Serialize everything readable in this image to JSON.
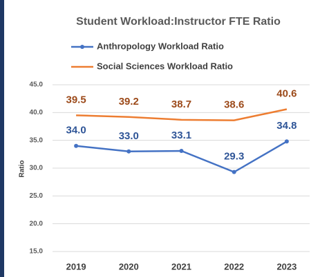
{
  "chart_data": {
    "type": "line",
    "title": "Student Workload:Instructor FTE Ratio",
    "y_label": "Ratio",
    "categories": [
      "2019",
      "2020",
      "2021",
      "2022",
      "2023"
    ],
    "series": [
      {
        "name": "Anthropology Workload Ratio",
        "color": "#4472c4",
        "label_color": "#2f5597",
        "values": [
          34.0,
          33.0,
          33.1,
          29.3,
          34.8
        ],
        "value_labels": [
          "34.0",
          "33.0",
          "33.1",
          "29.3",
          "34.8"
        ]
      },
      {
        "name": "Social Sciences Workload Ratio",
        "color": "#ed7d31",
        "label_color": "#9c4a1a",
        "values": [
          39.5,
          39.2,
          38.7,
          38.6,
          40.6
        ],
        "value_labels": [
          "39.5",
          "39.2",
          "38.7",
          "38.6",
          "40.6"
        ]
      }
    ],
    "ylim": [
      15,
      45
    ],
    "yticks": [
      {
        "value": 15,
        "label": "15.0"
      },
      {
        "value": 20,
        "label": "20.0"
      },
      {
        "value": 25,
        "label": "25.0"
      },
      {
        "value": 30,
        "label": "30.0"
      },
      {
        "value": 35,
        "label": "35.0"
      },
      {
        "value": 40,
        "label": "40.0"
      },
      {
        "value": 45,
        "label": "45.0"
      }
    ],
    "grid": true
  }
}
